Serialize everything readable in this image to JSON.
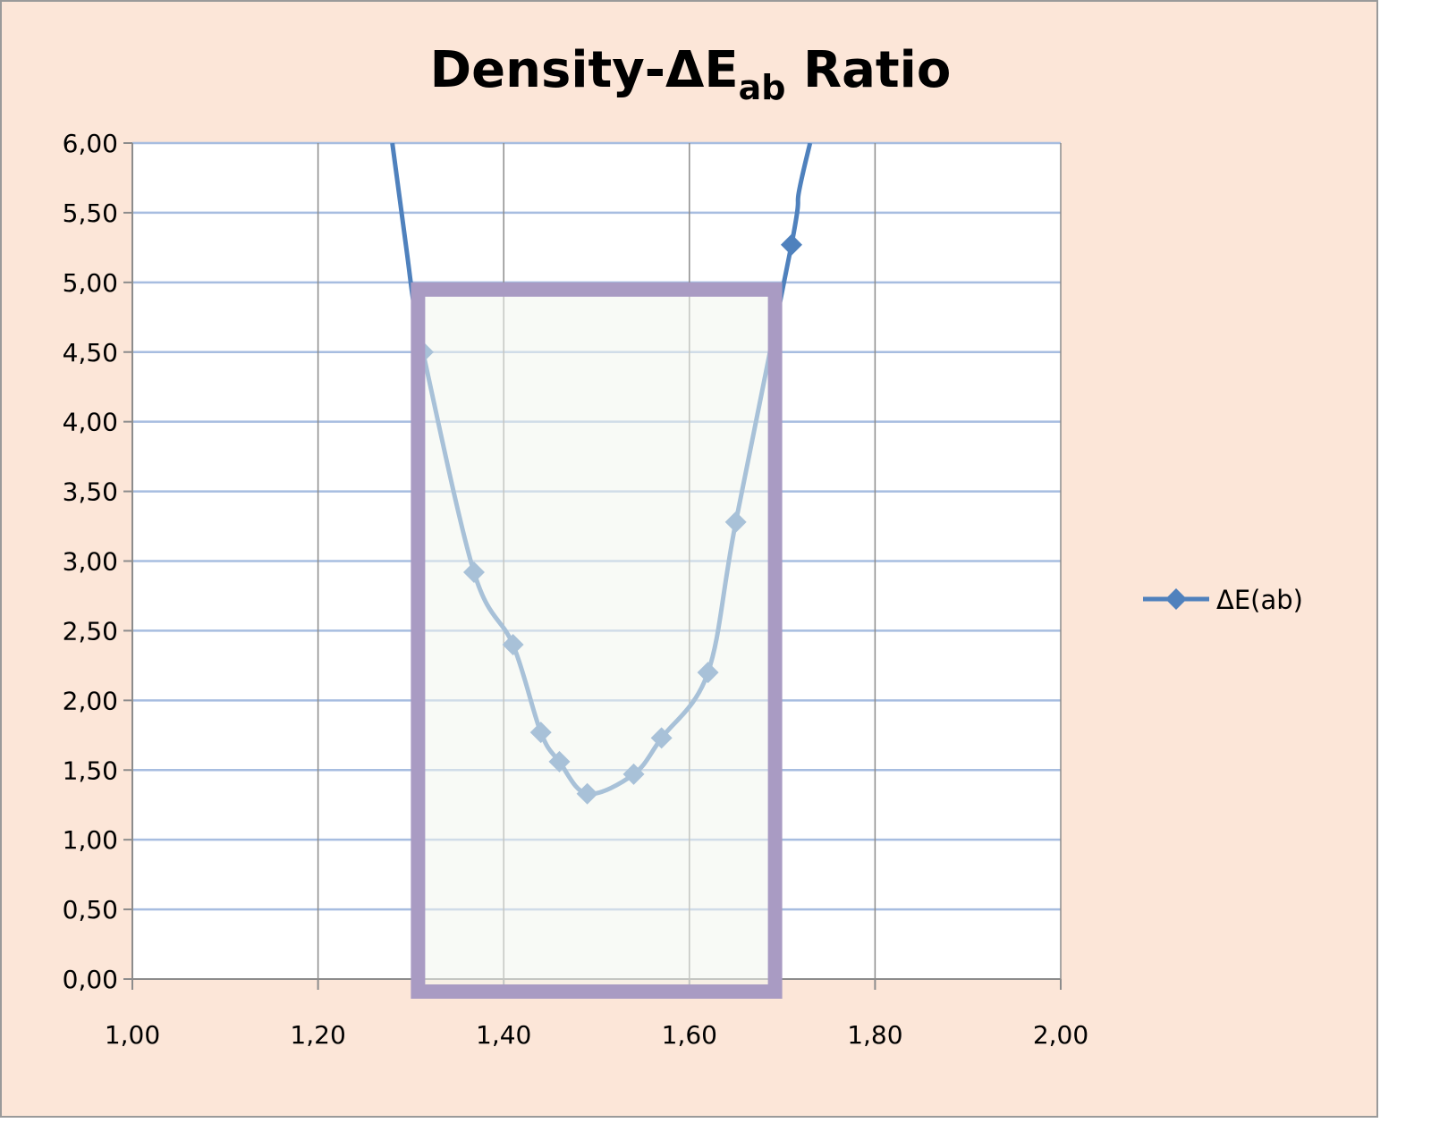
{
  "chart_data": {
    "type": "line",
    "title": "Density-ΔE",
    "title_subscript": "ab",
    "title_suffix": " Ratio",
    "xlabel": "",
    "ylabel": "",
    "xlim": [
      1.0,
      2.0
    ],
    "ylim": [
      0.0,
      6.0
    ],
    "x_ticks": [
      1.0,
      1.2,
      1.4,
      1.6,
      1.8,
      2.0
    ],
    "x_tick_labels": [
      "1,00",
      "1,20",
      "1,40",
      "1,60",
      "1,80",
      "2,00"
    ],
    "y_ticks": [
      0.0,
      0.5,
      1.0,
      1.5,
      2.0,
      2.5,
      3.0,
      3.5,
      4.0,
      4.5,
      5.0,
      5.5,
      6.0
    ],
    "y_tick_labels": [
      "0,00",
      "0,50",
      "1,00",
      "1,50",
      "2,00",
      "2,50",
      "3,00",
      "3,50",
      "4,00",
      "4,50",
      "5,00",
      "5,50",
      "6,00"
    ],
    "grid": true,
    "legend_position": "right",
    "series": [
      {
        "name": "ΔE(ab)",
        "color": "#4f81bd",
        "marker": "diamond",
        "x": [
          1.313,
          1.368,
          1.41,
          1.44,
          1.46,
          1.49,
          1.54,
          1.57,
          1.62,
          1.65,
          1.71
        ],
        "y": [
          4.5,
          2.92,
          2.4,
          1.77,
          1.56,
          1.33,
          1.47,
          1.73,
          2.2,
          3.28,
          5.27
        ],
        "curve_left_x": [
          1.28,
          1.288,
          1.296,
          1.303
        ],
        "curve_left_y": [
          6.0,
          5.6,
          5.2,
          4.85
        ],
        "curve_right_x": [
          1.718,
          1.73
        ],
        "curve_right_y": [
          5.65,
          6.0
        ]
      }
    ],
    "highlight_region": {
      "x_range": [
        1.3,
        1.7
      ],
      "y_range": [
        0.0,
        5.0
      ],
      "border_color": "#a99bc3",
      "fill_color": "#f3f6ee"
    }
  }
}
